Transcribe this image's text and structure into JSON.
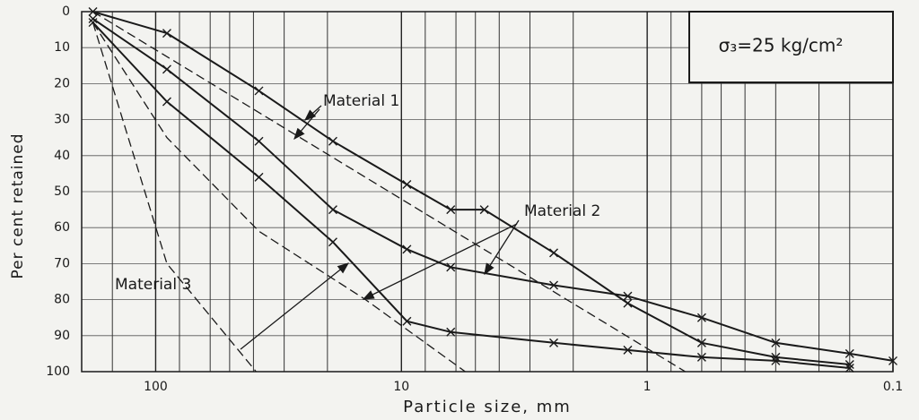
{
  "chart_data": {
    "type": "line",
    "xlabel": "Particle size, mm",
    "ylabel": "Per cent retained",
    "xscale": "log",
    "xlim": [
      200,
      0.1
    ],
    "ylim": [
      0,
      100
    ],
    "xticks": [
      100,
      10,
      1,
      0.1
    ],
    "xminor": [
      150,
      80,
      60,
      50,
      40,
      30,
      20,
      8,
      6,
      5,
      4,
      3,
      2,
      0.8,
      0.6,
      0.5,
      0.4,
      0.3,
      0.2,
      0.15
    ],
    "yticks": [
      0,
      10,
      20,
      30,
      40,
      50,
      60,
      70,
      80,
      90,
      100
    ],
    "grid": true,
    "box_text": "σ₃=25 kg/cm²",
    "annotations": [
      "Material 1",
      "Material 2",
      "Material 3"
    ],
    "series": [
      {
        "color": "#1a1a1a",
        "style": "solid",
        "marker": "x",
        "x": [
          180,
          90,
          38,
          19,
          9.5,
          6.3,
          4.6,
          2.4,
          1.2,
          0.6,
          0.3,
          0.15
        ],
        "values": [
          0,
          6,
          22,
          36,
          48,
          55,
          55,
          67,
          81,
          92,
          96,
          98
        ]
      },
      {
        "color": "#1a1a1a",
        "style": "solid",
        "marker": "x",
        "x": [
          180,
          90,
          38,
          19,
          9.5,
          6.3,
          2.4,
          1.2,
          0.6,
          0.3,
          0.15,
          0.1
        ],
        "values": [
          2,
          16,
          36,
          55,
          66,
          71,
          76,
          79,
          85,
          92,
          95,
          97
        ]
      },
      {
        "color": "#1a1a1a",
        "style": "solid",
        "marker": "x",
        "x": [
          180,
          90,
          38,
          19,
          9.5,
          6.3,
          2.4,
          1.2,
          0.6,
          0.3,
          0.15
        ],
        "values": [
          3,
          25,
          46,
          64,
          86,
          89,
          92,
          94,
          96,
          97,
          99
        ]
      },
      {
        "color": "#1a1a1a",
        "style": "dashed",
        "marker": "none",
        "x": [
          180,
          0.7
        ],
        "values": [
          0,
          100
        ]
      },
      {
        "color": "#1a1a1a",
        "style": "dashed",
        "marker": "none",
        "x": [
          180,
          90,
          38,
          14,
          5.5
        ],
        "values": [
          3,
          35,
          61,
          80,
          100
        ]
      },
      {
        "color": "#1a1a1a",
        "style": "dashed",
        "marker": "none",
        "x": [
          180,
          90,
          39
        ],
        "values": [
          3,
          70,
          100
        ]
      }
    ]
  }
}
